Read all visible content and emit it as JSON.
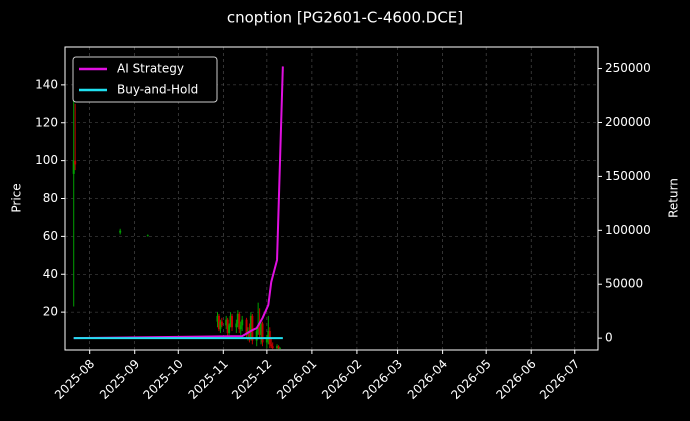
{
  "chart_data": {
    "type": "candlestick",
    "title": "cnoption [PG2601-C-4600.DCE]",
    "ylabel": "Price",
    "y2label": "Return",
    "x": [
      "2025-07-21",
      "2025-07-22",
      "2025-08-22",
      "2025-09-10",
      "2025-10-28",
      "2025-10-29",
      "2025-10-30",
      "2025-10-31",
      "2025-11-03",
      "2025-11-04",
      "2025-11-05",
      "2025-11-06",
      "2025-11-07",
      "2025-11-10",
      "2025-11-11",
      "2025-11-12",
      "2025-11-13",
      "2025-11-14",
      "2025-11-17",
      "2025-11-18",
      "2025-11-19",
      "2025-11-20",
      "2025-11-21",
      "2025-11-24",
      "2025-11-25",
      "2025-11-26",
      "2025-11-27",
      "2025-11-28",
      "2025-12-01",
      "2025-12-02",
      "2025-12-03",
      "2025-12-04",
      "2025-12-05",
      "2025-12-08",
      "2025-12-09",
      "2025-12-10"
    ],
    "open": [
      93,
      100,
      62,
      60.5,
      15,
      18,
      11,
      15,
      13,
      16,
      9,
      13,
      18,
      12,
      14,
      19,
      11,
      13,
      16,
      8,
      10,
      6,
      18,
      5,
      10,
      12,
      8,
      14,
      4,
      6,
      10,
      3,
      2,
      1,
      2,
      1
    ],
    "high": [
      140,
      130,
      64,
      61,
      20,
      19,
      16,
      17,
      18,
      17,
      14,
      20,
      19,
      16,
      21,
      20,
      15,
      18,
      17,
      12,
      14,
      20,
      19,
      12,
      25,
      22,
      16,
      15,
      8,
      18,
      12,
      6,
      4,
      3,
      2.5,
      1.5
    ],
    "low": [
      23,
      95,
      61,
      60,
      12,
      10,
      9,
      12,
      11,
      7,
      8,
      12,
      10,
      9,
      12,
      9,
      8,
      10,
      6,
      5,
      4,
      5,
      3,
      2,
      8,
      6,
      3,
      2,
      1,
      3,
      1,
      1,
      0.5,
      0.5,
      0.5,
      0.5
    ],
    "close": [
      100,
      98,
      63,
      60.5,
      18,
      11,
      15,
      13,
      16,
      9,
      13,
      18,
      12,
      14,
      19,
      11,
      13,
      16,
      8,
      10,
      6,
      18,
      5,
      10,
      12,
      8,
      14,
      4,
      6,
      10,
      3,
      2,
      1,
      2,
      1,
      1
    ],
    "up_color": "#00a000",
    "down_color": "#c00000",
    "series": [
      {
        "name": "AI Strategy",
        "color": "#e010e0",
        "axis": "y2",
        "x": [
          "2025-07-21",
          "2025-11-14",
          "2025-11-21",
          "2025-11-24",
          "2025-11-28",
          "2025-12-02",
          "2025-12-04",
          "2025-12-08",
          "2025-12-12"
        ],
        "values": [
          0,
          1900,
          7400,
          9300,
          18600,
          30700,
          52000,
          72500,
          252000
        ]
      },
      {
        "name": "Buy-and-Hold",
        "color": "#20e0f0",
        "axis": "y2",
        "x": [
          "2025-07-21",
          "2025-12-12"
        ],
        "values": [
          0,
          0
        ]
      }
    ],
    "xlim": [
      "2025-07-15",
      "2026-07-17"
    ],
    "xticks": [
      {
        "value": "2025-08-01",
        "label": "2025-08"
      },
      {
        "value": "2025-09-01",
        "label": "2025-09"
      },
      {
        "value": "2025-10-01",
        "label": "2025-10"
      },
      {
        "value": "2025-11-01",
        "label": "2025-11"
      },
      {
        "value": "2025-12-01",
        "label": "2025-12"
      },
      {
        "value": "2026-01-01",
        "label": "2026-01"
      },
      {
        "value": "2026-02-01",
        "label": "2026-02"
      },
      {
        "value": "2026-03-01",
        "label": "2026-03"
      },
      {
        "value": "2026-04-01",
        "label": "2026-04"
      },
      {
        "value": "2026-05-01",
        "label": "2026-05"
      },
      {
        "value": "2026-06-01",
        "label": "2026-06"
      },
      {
        "value": "2026-07-01",
        "label": "2026-07"
      }
    ],
    "ylim": [
      0,
      160
    ],
    "yticks": [
      20,
      40,
      60,
      80,
      100,
      120,
      140
    ],
    "y2lim": [
      -11000,
      270000
    ],
    "y2ticks": [
      0,
      50000,
      100000,
      150000,
      200000,
      250000
    ],
    "grid": true,
    "legend": "upper left"
  }
}
